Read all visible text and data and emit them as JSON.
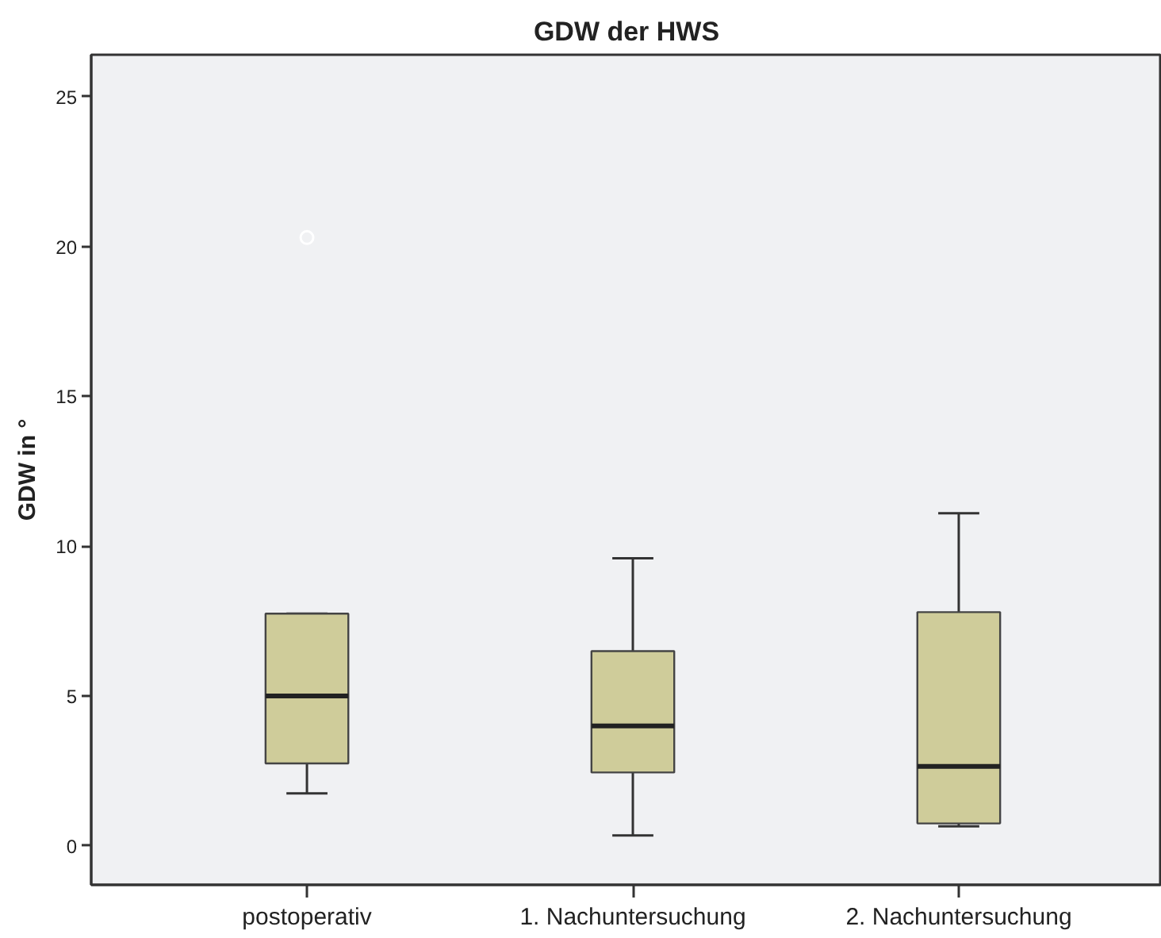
{
  "chart_data": {
    "type": "box",
    "title": "GDW der HWS",
    "ylabel": "GDW in °",
    "categories": [
      "postoperativ",
      "1. Nachuntersuchung",
      "2. Nachuntersuchung"
    ],
    "boxes": [
      {
        "low": 1.75,
        "q1": 2.75,
        "median": 5.0,
        "q3": 7.75,
        "high": 7.75,
        "outliers": [
          20.3
        ]
      },
      {
        "low": 0.35,
        "q1": 2.45,
        "median": 4.0,
        "q3": 6.5,
        "high": 9.6
      },
      {
        "low": 0.65,
        "q1": 0.75,
        "median": 2.65,
        "q3": 7.8,
        "high": 11.1
      }
    ],
    "color": "#cfcc9a",
    "ylim": [
      -1.3,
      26.4
    ],
    "yticks": [
      0,
      5,
      10,
      15,
      20,
      25
    ]
  }
}
